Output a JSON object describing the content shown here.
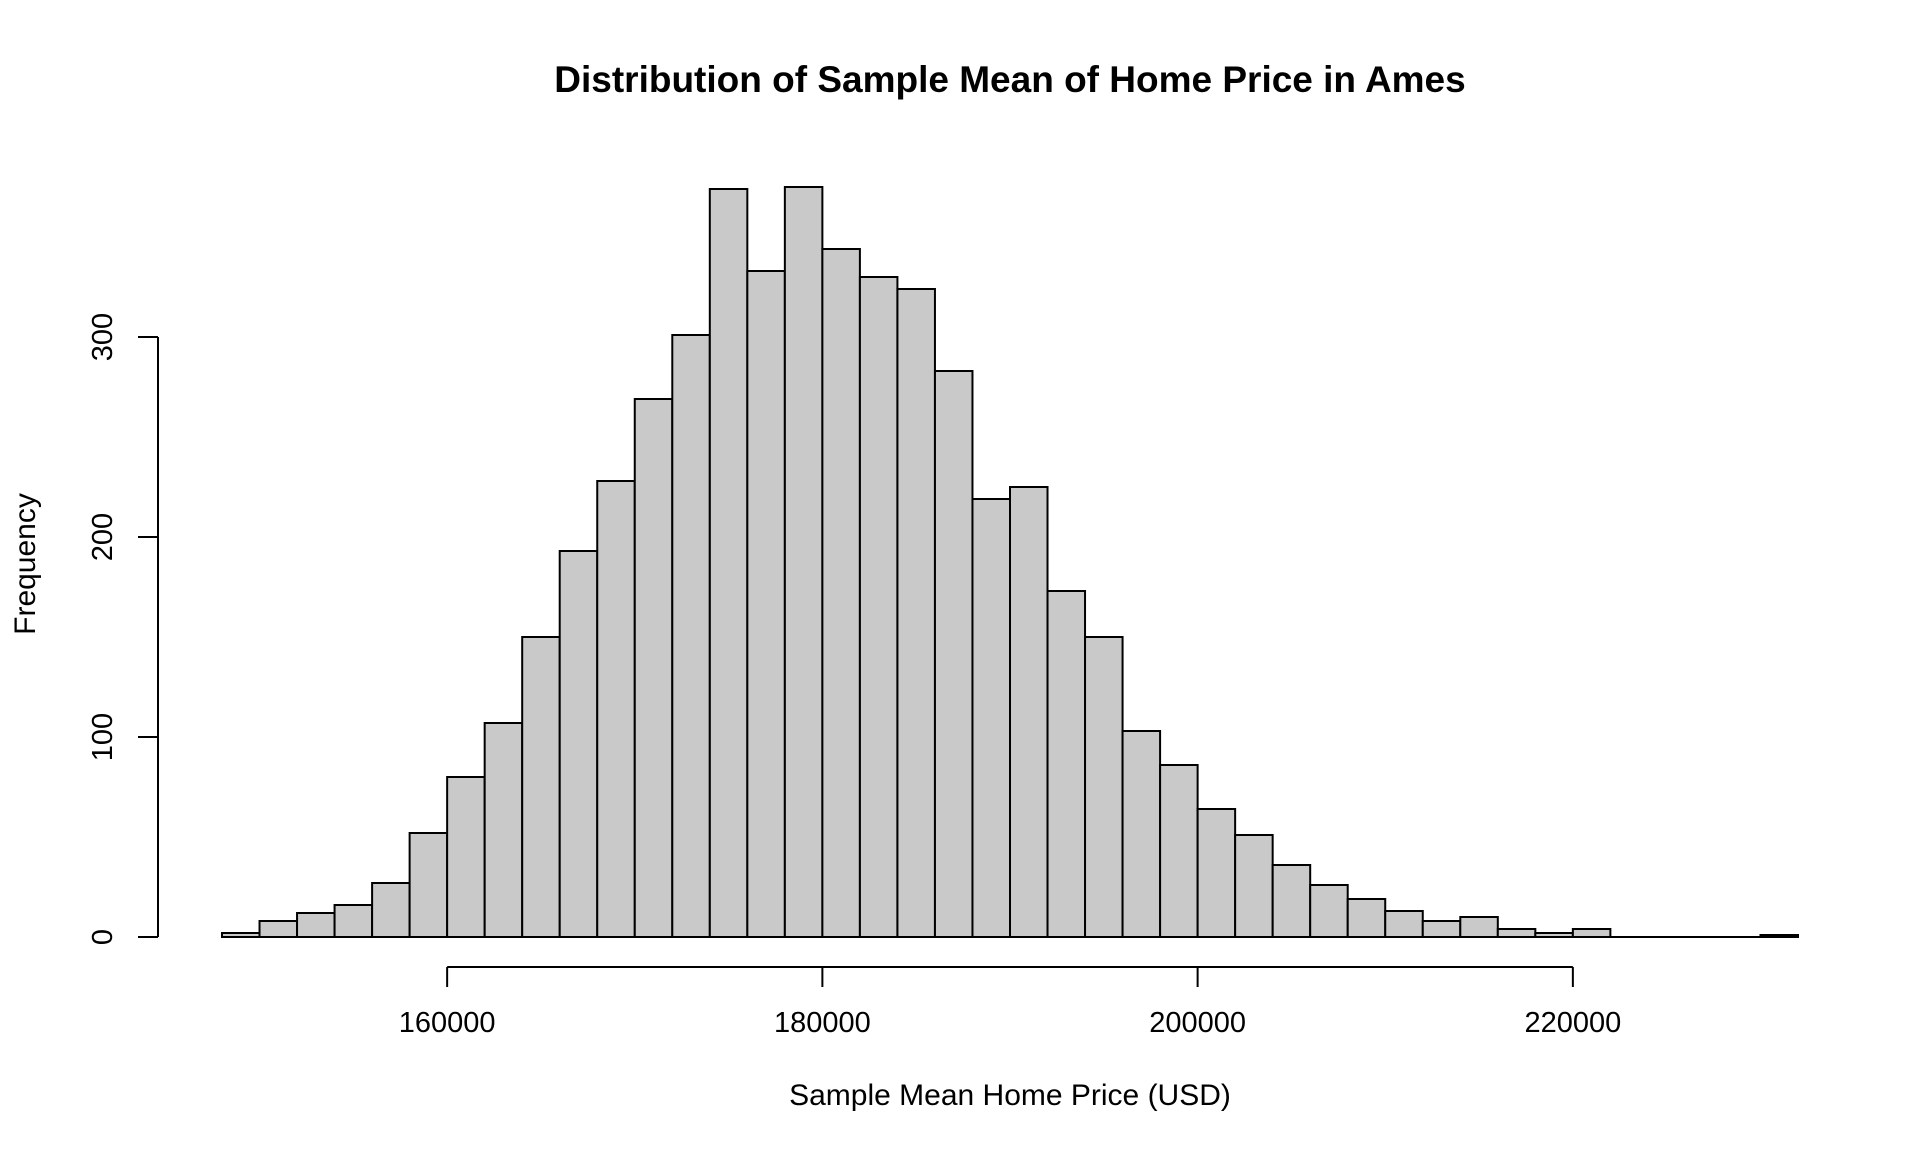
{
  "chart_data": {
    "type": "bar",
    "title": "Distribution of Sample Mean of Home Price in Ames",
    "xlabel": "Sample Mean Home Price (USD)",
    "ylabel": "Frequency",
    "bin_width": 2000,
    "bins_start": [
      148000,
      150000,
      152000,
      154000,
      156000,
      158000,
      160000,
      162000,
      164000,
      166000,
      168000,
      170000,
      172000,
      174000,
      176000,
      178000,
      180000,
      182000,
      184000,
      186000,
      188000,
      190000,
      192000,
      194000,
      196000,
      198000,
      200000,
      202000,
      204000,
      206000,
      208000,
      210000,
      212000,
      214000,
      216000,
      218000,
      220000,
      222000,
      224000,
      226000,
      228000,
      230000
    ],
    "values": [
      2,
      8,
      12,
      16,
      27,
      52,
      80,
      107,
      150,
      193,
      228,
      269,
      301,
      374,
      333,
      375,
      344,
      330,
      324,
      283,
      219,
      225,
      173,
      150,
      103,
      86,
      64,
      51,
      36,
      26,
      19,
      13,
      8,
      10,
      4,
      2,
      4,
      0,
      0,
      0,
      0,
      1
    ],
    "xlim": [
      148000,
      232000
    ],
    "ylim": [
      0,
      375
    ],
    "x_ticks": [
      160000,
      180000,
      200000,
      220000
    ],
    "x_tick_labels": [
      "160000",
      "180000",
      "200000",
      "220000"
    ],
    "y_ticks": [
      0,
      100,
      200,
      300
    ],
    "y_tick_labels": [
      "0",
      "100",
      "200",
      "300"
    ],
    "grid": false,
    "colors": {
      "bar_fill": "#c9c9c9",
      "bar_stroke": "#000000",
      "background": "#ffffff"
    }
  }
}
